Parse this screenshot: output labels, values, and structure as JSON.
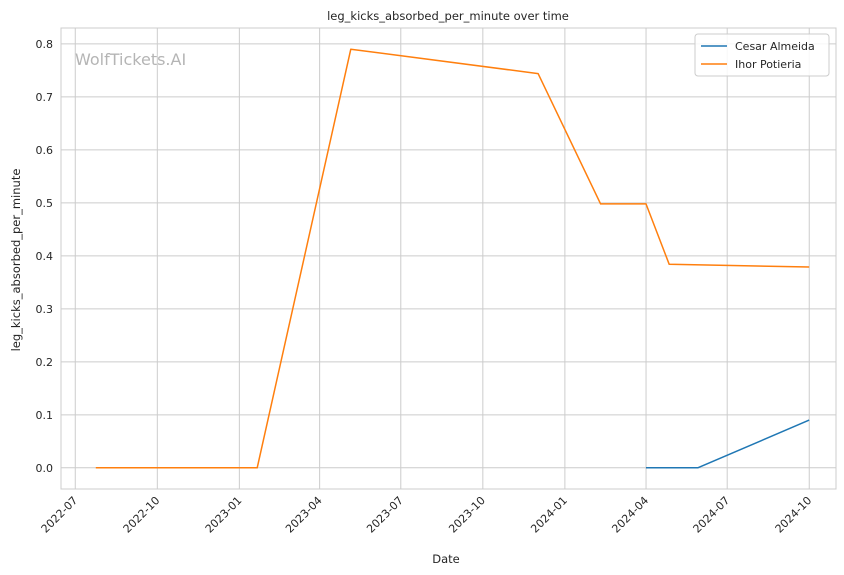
{
  "chart_data": {
    "type": "line",
    "title": "leg_kicks_absorbed_per_minute over time",
    "xlabel": "Date",
    "ylabel": "leg_kicks_absorbed_per_minute",
    "watermark": "WolfTickets.AI",
    "x_type": "date",
    "xlim": [
      "2022-06-15",
      "2024-10-31"
    ],
    "ylim": [
      -0.04,
      0.83
    ],
    "x_ticks": [
      "2022-07-01",
      "2022-10-01",
      "2023-01-01",
      "2023-04-01",
      "2023-07-01",
      "2023-10-01",
      "2024-01-01",
      "2024-04-01",
      "2024-07-01",
      "2024-10-01"
    ],
    "x_tick_labels": [
      "2022-07",
      "2022-10",
      "2023-01",
      "2023-04",
      "2023-07",
      "2023-10",
      "2024-01",
      "2024-04",
      "2024-07",
      "2024-10"
    ],
    "y_ticks": [
      0.0,
      0.1,
      0.2,
      0.3,
      0.4,
      0.5,
      0.6,
      0.7,
      0.8
    ],
    "y_tick_labels": [
      "0.0",
      "0.1",
      "0.2",
      "0.3",
      "0.4",
      "0.5",
      "0.6",
      "0.7",
      "0.8"
    ],
    "grid": true,
    "legend_position": "top-right",
    "series": [
      {
        "name": "Cesar Almeida",
        "color": "#1f77b4",
        "points": [
          {
            "x": "2024-04-01",
            "y": 0.0
          },
          {
            "x": "2024-05-29",
            "y": 0.0
          },
          {
            "x": "2024-10-01",
            "y": 0.09
          }
        ]
      },
      {
        "name": "Ihor Potieria",
        "color": "#ff7f0e",
        "points": [
          {
            "x": "2022-07-24",
            "y": 0.0
          },
          {
            "x": "2023-01-21",
            "y": 0.0
          },
          {
            "x": "2023-05-06",
            "y": 0.79
          },
          {
            "x": "2023-12-02",
            "y": 0.744
          },
          {
            "x": "2024-02-10",
            "y": 0.498
          },
          {
            "x": "2024-04-01",
            "y": 0.498
          },
          {
            "x": "2024-04-27",
            "y": 0.384
          },
          {
            "x": "2024-10-01",
            "y": 0.379
          }
        ]
      }
    ]
  }
}
